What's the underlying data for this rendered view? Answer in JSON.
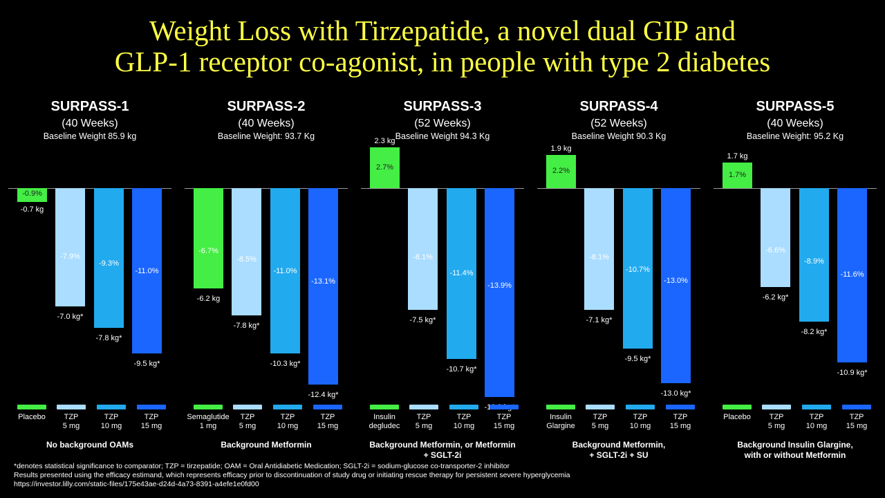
{
  "title_line1": "Weight Loss with Tirzepatide, a novel dual GIP and",
  "title_line2": "GLP-1 receptor co-agonist, in people with type 2 diabetes",
  "colors": {
    "comparator": "#44ee44",
    "tzp5": "#aaddff",
    "tzp10": "#22aaee",
    "tzp15": "#1a66ff",
    "title": "#ffff44"
  },
  "chart_data": [
    {
      "type": "bar",
      "title": "SURPASS-1",
      "weeks": "(40 Weeks)",
      "baseline": "Baseline Weight 85.9 kg",
      "background": [
        "No background OAMs"
      ],
      "categories": [
        [
          "Placebo"
        ],
        [
          "TZP",
          "5 mg"
        ],
        [
          "TZP",
          "10 mg"
        ],
        [
          "TZP",
          "15 mg"
        ]
      ],
      "percent_change": [
        -0.9,
        -7.9,
        -9.3,
        -11.0
      ],
      "percent_labels": [
        "-0.9%",
        "-7.9%",
        "-9.3%",
        "-11.0%"
      ],
      "kg_labels": [
        "-0.7 kg",
        "-7.0 kg*",
        "-7.8 kg*",
        "-9.5 kg*"
      ]
    },
    {
      "type": "bar",
      "title": "SURPASS-2",
      "weeks": "(40 Weeks)",
      "baseline": "Baseline Weight: 93.7 Kg",
      "background": [
        "Background Metformin"
      ],
      "categories": [
        [
          "Semaglutide",
          "1 mg"
        ],
        [
          "TZP",
          "5 mg"
        ],
        [
          "TZP",
          "10 mg"
        ],
        [
          "TZP",
          "15 mg"
        ]
      ],
      "percent_change": [
        -6.7,
        -8.5,
        -11.0,
        -13.1
      ],
      "percent_labels": [
        "-6.7%",
        "-8.5%",
        "-11.0%",
        "-13.1%"
      ],
      "kg_labels": [
        "-6.2 kg",
        "-7.8 kg*",
        "-10.3 kg*",
        "-12.4 kg*"
      ]
    },
    {
      "type": "bar",
      "title": "SURPASS-3",
      "weeks": "(52 Weeks)",
      "baseline": "Baseline Weight 94.3 Kg",
      "background": [
        "Background Metformin, or Metformin",
        "+ SGLT-2i"
      ],
      "categories": [
        [
          "Insulin",
          "degludec"
        ],
        [
          "TZP",
          "5 mg"
        ],
        [
          "TZP",
          "10 mg"
        ],
        [
          "TZP",
          "15 mg"
        ]
      ],
      "percent_change": [
        2.7,
        -8.1,
        -11.4,
        -13.9
      ],
      "percent_labels": [
        "2.7%",
        "-8.1%",
        "-11.4%",
        "-13.9%"
      ],
      "kg_labels": [
        "2.3 kg",
        "-7.5 kg*",
        "-10.7 kg*",
        "-12.9 kg*"
      ]
    },
    {
      "type": "bar",
      "title": "SURPASS-4",
      "weeks": "(52 Weeks)",
      "baseline": "Baseline Weight 90.3 Kg",
      "background": [
        "Background Metformin,",
        "+ SGLT-2i + SU"
      ],
      "categories": [
        [
          "Insulin",
          "Glargine"
        ],
        [
          "TZP",
          "5 mg"
        ],
        [
          "TZP",
          "10 mg"
        ],
        [
          "TZP",
          "15 mg"
        ]
      ],
      "percent_change": [
        2.2,
        -8.1,
        -10.7,
        -13.0
      ],
      "percent_labels": [
        "2.2%",
        "-8.1%",
        "-10.7%",
        "-13.0%"
      ],
      "kg_labels": [
        "1.9 kg",
        "-7.1 kg*",
        "-9.5 kg*",
        "-13.0 kg*"
      ]
    },
    {
      "type": "bar",
      "title": "SURPASS-5",
      "weeks": "(40 Weeks)",
      "baseline": "Baseline Weight: 95.2 Kg",
      "background": [
        "Background Insulin Glargine,",
        "with or without Metformin"
      ],
      "categories": [
        [
          "Placebo"
        ],
        [
          "TZP",
          "5 mg"
        ],
        [
          "TZP",
          "10 mg"
        ],
        [
          "TZP",
          "15 mg"
        ]
      ],
      "percent_change": [
        1.7,
        -6.6,
        -8.9,
        -11.6
      ],
      "percent_labels": [
        "1.7%",
        "-6.6%",
        "-8.9%",
        "-11.6%"
      ],
      "kg_labels": [
        "1.7 kg",
        "-6.2 kg*",
        "-8.2 kg*",
        "-10.9 kg*"
      ]
    }
  ],
  "footnotes": [
    "*denotes statistical significance to comparator; TZP = tirzepatide; OAM  = Oral Antidiabetic Medication; SGLT-2i =  sodium-glucose co-transporter-2 inhibitor",
    "Results presented using the efficacy estimand, which represents efficacy prior to discontinuation of study drug or initiating rescue therapy for persistent severe hyperglycemia",
    "https://investor.lilly.com/static-files/175e43ae-d24d-4a73-8391-a4efe1e0fd00"
  ]
}
